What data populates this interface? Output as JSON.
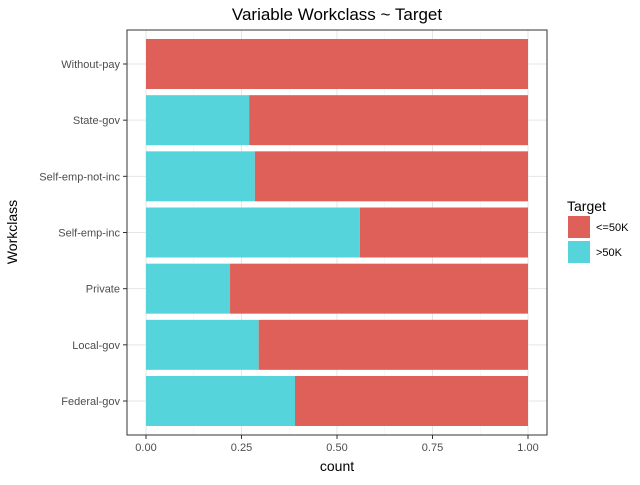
{
  "chart_data": {
    "type": "bar",
    "orientation": "horizontal",
    "stacked": true,
    "title": "Variable Workclass ~ Target",
    "xlabel": "count",
    "ylabel": "Workclass",
    "xlim": [
      0,
      1
    ],
    "x_ticks": [
      "0.00",
      "0.25",
      "0.50",
      "0.75",
      "1.00"
    ],
    "categories": [
      "Without-pay",
      "State-gov",
      "Self-emp-not-inc",
      "Self-emp-inc",
      "Private",
      "Local-gov",
      "Federal-gov"
    ],
    "series": [
      {
        "name": ">50K",
        "values": [
          0.0,
          0.27,
          0.285,
          0.56,
          0.22,
          0.295,
          0.39
        ],
        "color": "#56d4dc"
      },
      {
        "name": "<=50K",
        "values": [
          1.0,
          0.73,
          0.715,
          0.44,
          0.78,
          0.705,
          0.61
        ],
        "color": "#de6058"
      }
    ],
    "grid": true,
    "legend": {
      "title": "Target",
      "position": "right",
      "entries": [
        {
          "label": "<=50K",
          "color": "#de6058"
        },
        {
          "label": ">50K",
          "color": "#56d4dc"
        }
      ]
    }
  }
}
